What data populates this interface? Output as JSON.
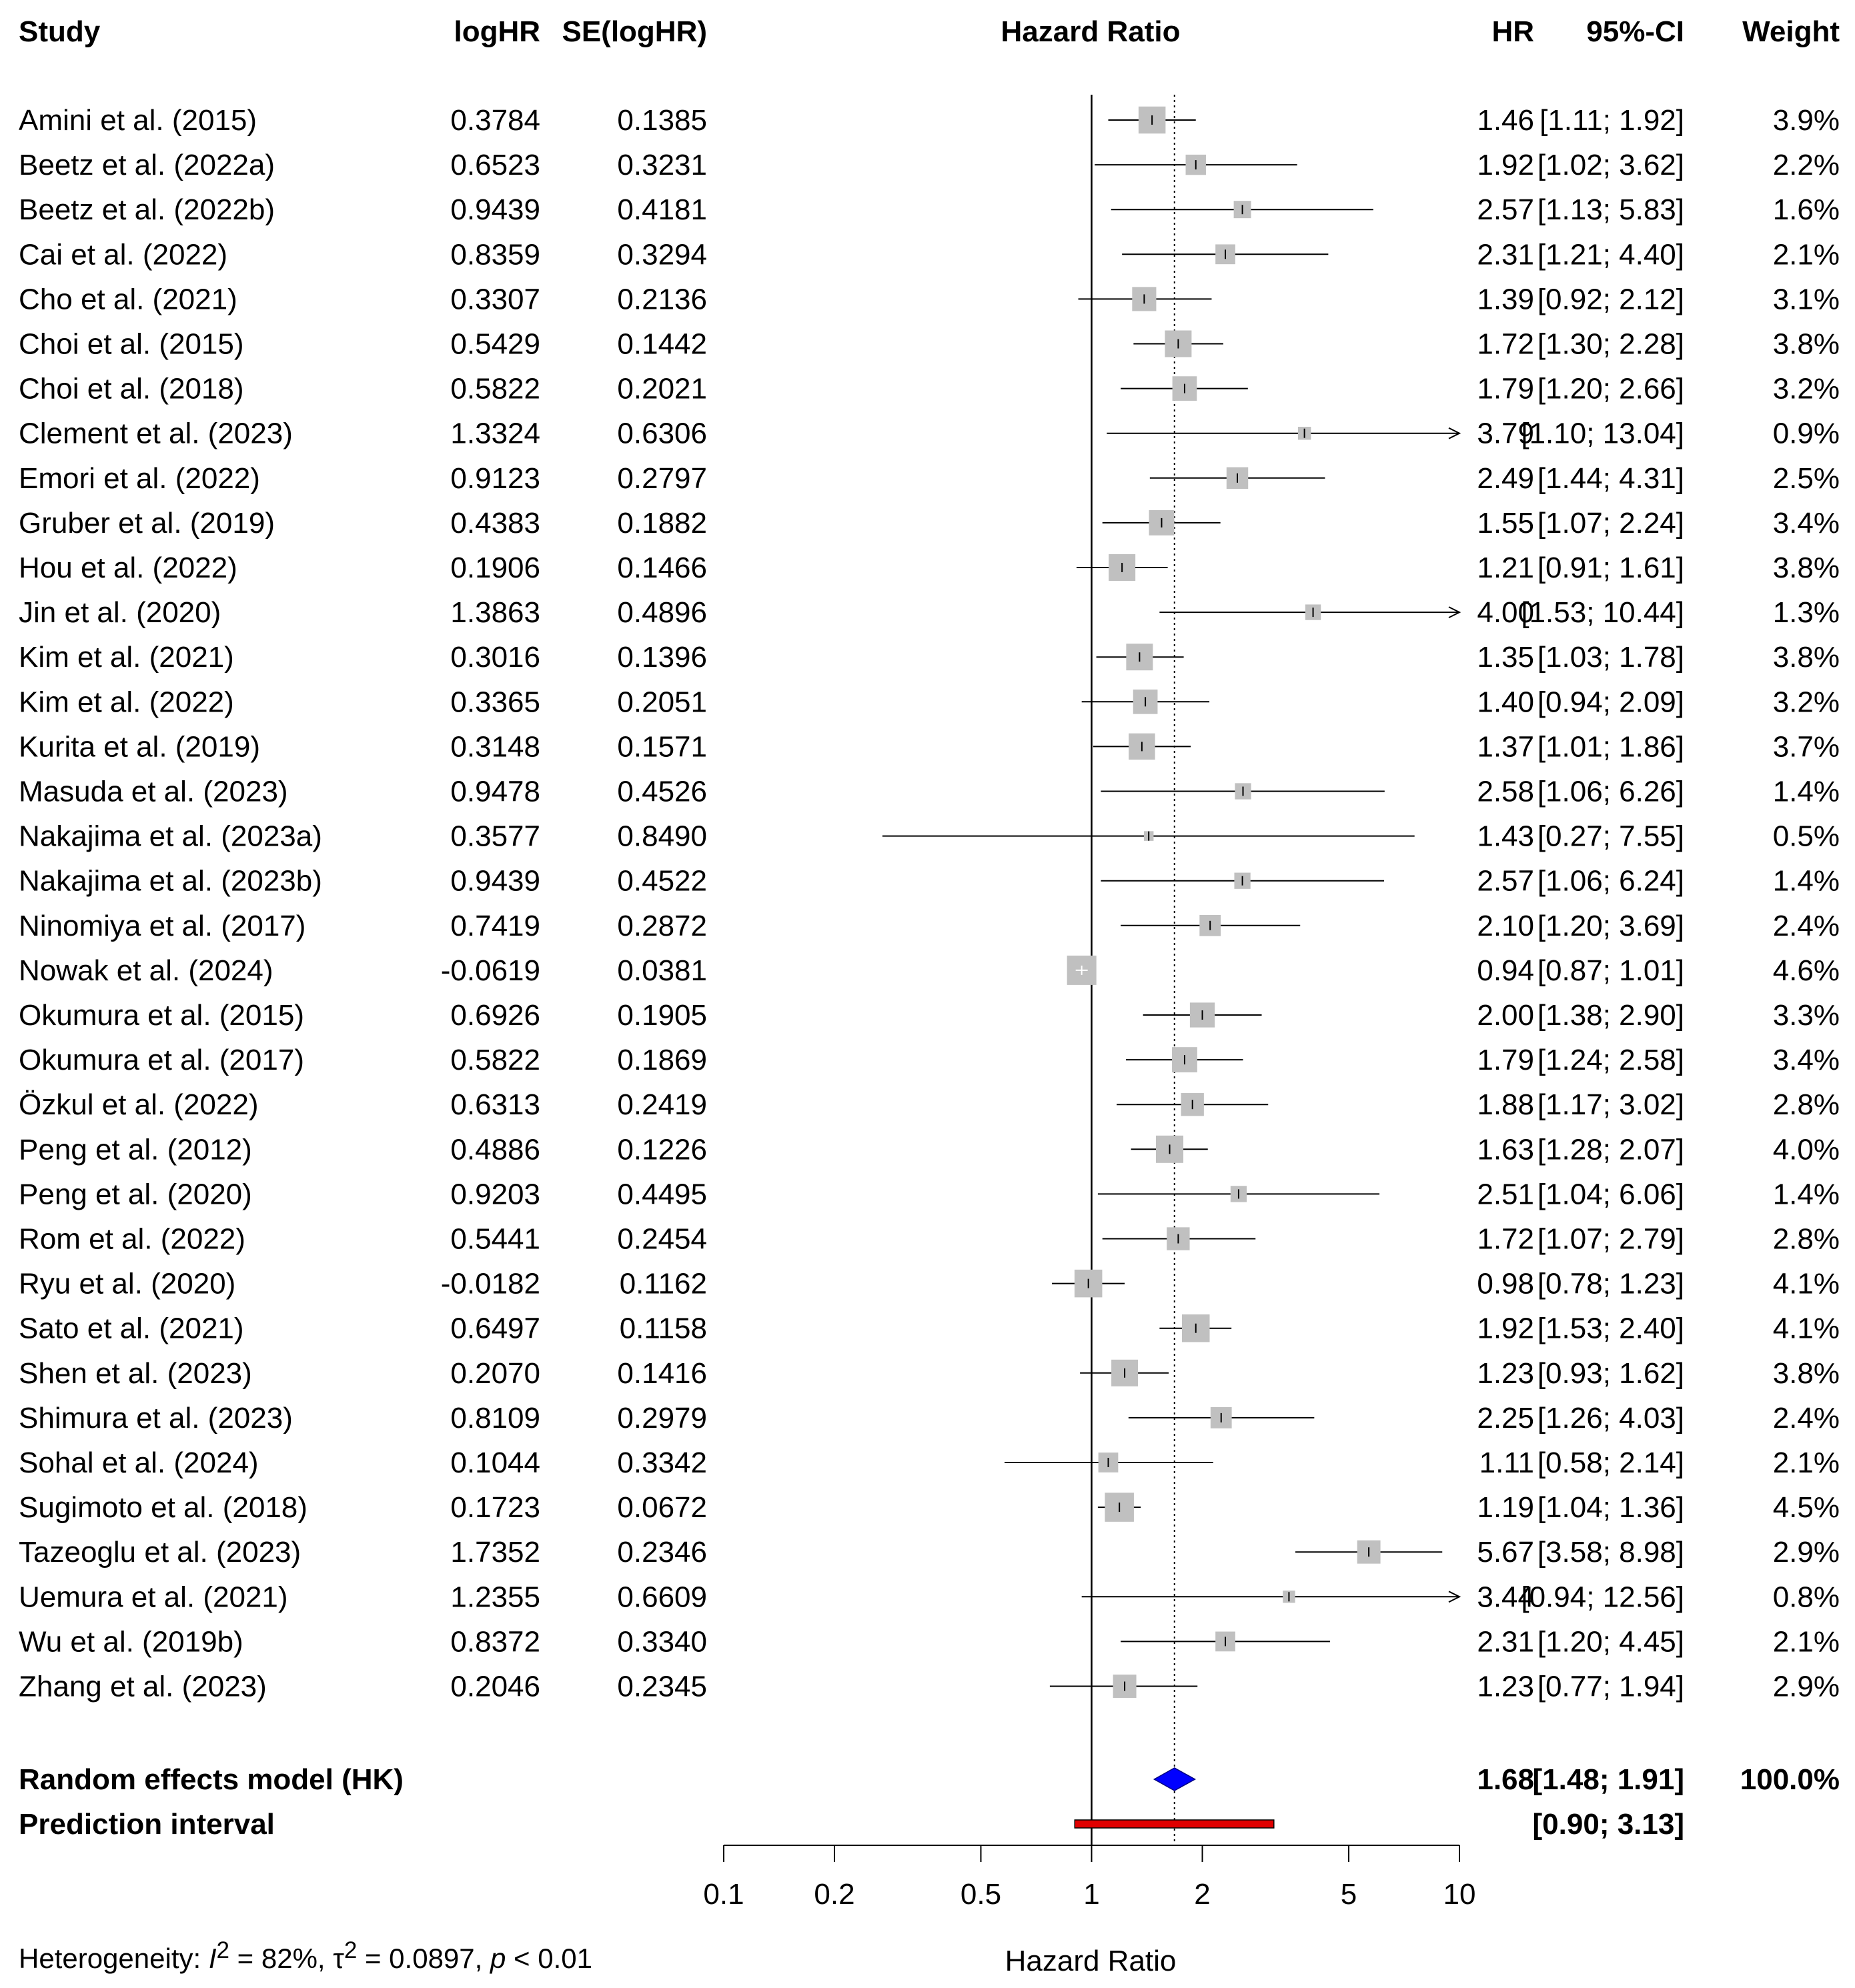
{
  "headers": {
    "study": "Study",
    "loghr": "logHR",
    "se": "SE(logHR)",
    "plot": "Hazard Ratio",
    "hr": "HR",
    "ci": "95%-CI",
    "weight": "Weight"
  },
  "footer": {
    "prefix": "Heterogeneity: ",
    "i2_symbol": "I",
    "i2_value": " = 82%, ",
    "tau_symbol": "τ",
    "tau_value": " = 0.0897, ",
    "p_symbol": "p",
    "p_value": " < 0.01",
    "superscript": "2"
  },
  "colors": {
    "box": "#c0c0c0",
    "diamond": "#0000ff",
    "prediction": "#e00000",
    "line": "#000000"
  },
  "chart_data": {
    "type": "forest",
    "title": "Hazard Ratio",
    "xlabel": "Hazard Ratio",
    "xscale": "log",
    "xlim": [
      0.1,
      10
    ],
    "xticks": [
      "0.1",
      "0.2",
      "0.5",
      "1",
      "2",
      "5",
      "10"
    ],
    "reference_line": 1,
    "pooled_line": 1.68,
    "studies": [
      {
        "study": "Amini et al. (2015)",
        "loghr": "0.3784",
        "se": "0.1385",
        "hr": "1.46",
        "lo": "1.11",
        "hi": "1.92",
        "weight": "3.9%"
      },
      {
        "study": "Beetz et al. (2022a)",
        "loghr": "0.6523",
        "se": "0.3231",
        "hr": "1.92",
        "lo": "1.02",
        "hi": "3.62",
        "weight": "2.2%"
      },
      {
        "study": "Beetz et al. (2022b)",
        "loghr": "0.9439",
        "se": "0.4181",
        "hr": "2.57",
        "lo": "1.13",
        "hi": "5.83",
        "weight": "1.6%"
      },
      {
        "study": "Cai et al. (2022)",
        "loghr": "0.8359",
        "se": "0.3294",
        "hr": "2.31",
        "lo": "1.21",
        "hi": "4.40",
        "weight": "2.1%"
      },
      {
        "study": "Cho et al. (2021)",
        "loghr": "0.3307",
        "se": "0.2136",
        "hr": "1.39",
        "lo": "0.92",
        "hi": "2.12",
        "weight": "3.1%"
      },
      {
        "study": "Choi et al. (2015)",
        "loghr": "0.5429",
        "se": "0.1442",
        "hr": "1.72",
        "lo": "1.30",
        "hi": "2.28",
        "weight": "3.8%"
      },
      {
        "study": "Choi et al. (2018)",
        "loghr": "0.5822",
        "se": "0.2021",
        "hr": "1.79",
        "lo": "1.20",
        "hi": "2.66",
        "weight": "3.2%"
      },
      {
        "study": "Clement et al. (2023)",
        "loghr": "1.3324",
        "se": "0.6306",
        "hr": "3.79",
        "lo": "1.10",
        "hi": "13.04",
        "weight": "0.9%"
      },
      {
        "study": "Emori et al. (2022)",
        "loghr": "0.9123",
        "se": "0.2797",
        "hr": "2.49",
        "lo": "1.44",
        "hi": "4.31",
        "weight": "2.5%"
      },
      {
        "study": "Gruber et al. (2019)",
        "loghr": "0.4383",
        "se": "0.1882",
        "hr": "1.55",
        "lo": "1.07",
        "hi": "2.24",
        "weight": "3.4%"
      },
      {
        "study": "Hou et al. (2022)",
        "loghr": "0.1906",
        "se": "0.1466",
        "hr": "1.21",
        "lo": "0.91",
        "hi": "1.61",
        "weight": "3.8%"
      },
      {
        "study": "Jin et al. (2020)",
        "loghr": "1.3863",
        "se": "0.4896",
        "hr": "4.00",
        "lo": "1.53",
        "hi": "10.44",
        "weight": "1.3%"
      },
      {
        "study": "Kim et al. (2021)",
        "loghr": "0.3016",
        "se": "0.1396",
        "hr": "1.35",
        "lo": "1.03",
        "hi": "1.78",
        "weight": "3.8%"
      },
      {
        "study": "Kim et al. (2022)",
        "loghr": "0.3365",
        "se": "0.2051",
        "hr": "1.40",
        "lo": "0.94",
        "hi": "2.09",
        "weight": "3.2%"
      },
      {
        "study": "Kurita et al. (2019)",
        "loghr": "0.3148",
        "se": "0.1571",
        "hr": "1.37",
        "lo": "1.01",
        "hi": "1.86",
        "weight": "3.7%"
      },
      {
        "study": "Masuda et al. (2023)",
        "loghr": "0.9478",
        "se": "0.4526",
        "hr": "2.58",
        "lo": "1.06",
        "hi": "6.26",
        "weight": "1.4%"
      },
      {
        "study": "Nakajima et al. (2023a)",
        "loghr": "0.3577",
        "se": "0.8490",
        "hr": "1.43",
        "lo": "0.27",
        "hi": "7.55",
        "weight": "0.5%"
      },
      {
        "study": "Nakajima et al. (2023b)",
        "loghr": "0.9439",
        "se": "0.4522",
        "hr": "2.57",
        "lo": "1.06",
        "hi": "6.24",
        "weight": "1.4%"
      },
      {
        "study": "Ninomiya et al. (2017)",
        "loghr": "0.7419",
        "se": "0.2872",
        "hr": "2.10",
        "lo": "1.20",
        "hi": "3.69",
        "weight": "2.4%"
      },
      {
        "study": "Nowak et al. (2024)",
        "loghr": "-0.0619",
        "se": "0.0381",
        "hr": "0.94",
        "lo": "0.87",
        "hi": "1.01",
        "weight": "4.6%"
      },
      {
        "study": "Okumura et al. (2015)",
        "loghr": "0.6926",
        "se": "0.1905",
        "hr": "2.00",
        "lo": "1.38",
        "hi": "2.90",
        "weight": "3.3%"
      },
      {
        "study": "Okumura et al. (2017)",
        "loghr": "0.5822",
        "se": "0.1869",
        "hr": "1.79",
        "lo": "1.24",
        "hi": "2.58",
        "weight": "3.4%"
      },
      {
        "study": "Özkul et al. (2022)",
        "loghr": "0.6313",
        "se": "0.2419",
        "hr": "1.88",
        "lo": "1.17",
        "hi": "3.02",
        "weight": "2.8%"
      },
      {
        "study": "Peng et al. (2012)",
        "loghr": "0.4886",
        "se": "0.1226",
        "hr": "1.63",
        "lo": "1.28",
        "hi": "2.07",
        "weight": "4.0%"
      },
      {
        "study": "Peng et al. (2020)",
        "loghr": "0.9203",
        "se": "0.4495",
        "hr": "2.51",
        "lo": "1.04",
        "hi": "6.06",
        "weight": "1.4%"
      },
      {
        "study": "Rom et al. (2022)",
        "loghr": "0.5441",
        "se": "0.2454",
        "hr": "1.72",
        "lo": "1.07",
        "hi": "2.79",
        "weight": "2.8%"
      },
      {
        "study": "Ryu et al. (2020)",
        "loghr": "-0.0182",
        "se": "0.1162",
        "hr": "0.98",
        "lo": "0.78",
        "hi": "1.23",
        "weight": "4.1%"
      },
      {
        "study": "Sato et al. (2021)",
        "loghr": "0.6497",
        "se": "0.1158",
        "hr": "1.92",
        "lo": "1.53",
        "hi": "2.40",
        "weight": "4.1%"
      },
      {
        "study": "Shen et al. (2023)",
        "loghr": "0.2070",
        "se": "0.1416",
        "hr": "1.23",
        "lo": "0.93",
        "hi": "1.62",
        "weight": "3.8%"
      },
      {
        "study": "Shimura et al. (2023)",
        "loghr": "0.8109",
        "se": "0.2979",
        "hr": "2.25",
        "lo": "1.26",
        "hi": "4.03",
        "weight": "2.4%"
      },
      {
        "study": "Sohal et al. (2024)",
        "loghr": "0.1044",
        "se": "0.3342",
        "hr": "1.11",
        "lo": "0.58",
        "hi": "2.14",
        "weight": "2.1%"
      },
      {
        "study": "Sugimoto et al. (2018)",
        "loghr": "0.1723",
        "se": "0.0672",
        "hr": "1.19",
        "lo": "1.04",
        "hi": "1.36",
        "weight": "4.5%"
      },
      {
        "study": "Tazeoglu et al. (2023)",
        "loghr": "1.7352",
        "se": "0.2346",
        "hr": "5.67",
        "lo": "3.58",
        "hi": "8.98",
        "weight": "2.9%"
      },
      {
        "study": "Uemura et al. (2021)",
        "loghr": "1.2355",
        "se": "0.6609",
        "hr": "3.44",
        "lo": "0.94",
        "hi": "12.56",
        "weight": "0.8%"
      },
      {
        "study": "Wu et al. (2019b)",
        "loghr": "0.8372",
        "se": "0.3340",
        "hr": "2.31",
        "lo": "1.20",
        "hi": "4.45",
        "weight": "2.1%"
      },
      {
        "study": "Zhang et al. (2023)",
        "loghr": "0.2046",
        "se": "0.2345",
        "hr": "1.23",
        "lo": "0.77",
        "hi": "1.94",
        "weight": "2.9%"
      }
    ],
    "pooled": {
      "label": "Random effects model (HK)",
      "hr": "1.68",
      "lo": "1.48",
      "hi": "1.91",
      "weight": "100.0%"
    },
    "prediction": {
      "label": "Prediction interval",
      "lo": "0.90",
      "hi": "3.13"
    }
  }
}
